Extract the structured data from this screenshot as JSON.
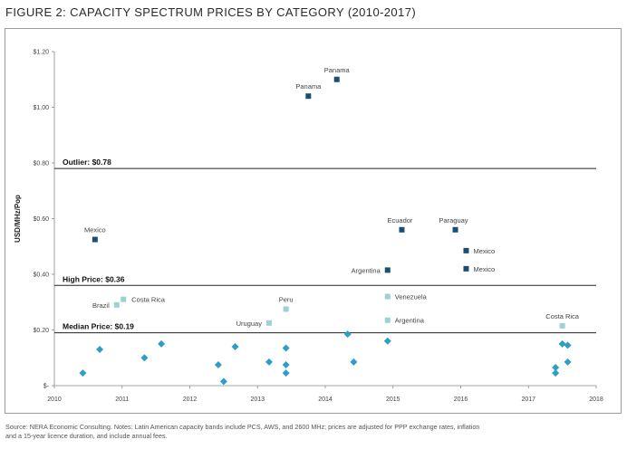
{
  "figure": {
    "title": "FIGURE 2: CAPACITY SPECTRUM PRICES BY CATEGORY (2010-2017)",
    "source_note_line1": "Source: NERA Economic Consulting. Notes: Latin American capacity bands include PCS, AWS, and 2600 MHz; prices are adjusted for PPP exchange rates, inflation",
    "source_note_line2": "and a 15-year licence duration, and include annual fees."
  },
  "chart_data": {
    "type": "scatter",
    "title": "FIGURE 2: CAPACITY SPECTRUM PRICES BY CATEGORY (2010-2017)",
    "xlabel": "",
    "ylabel": "USD/MHz/Pop",
    "xlim": [
      2010,
      2018
    ],
    "ylim": [
      0,
      1.2
    ],
    "x_ticks": [
      2010,
      2011,
      2012,
      2013,
      2014,
      2015,
      2016,
      2017,
      2018
    ],
    "x_tick_labels": [
      "2010",
      "2011",
      "2012",
      "2013",
      "2014",
      "2015",
      "2016",
      "2017",
      "2018"
    ],
    "y_ticks": [
      0,
      0.2,
      0.4,
      0.6,
      0.8,
      1.0,
      1.2
    ],
    "y_tick_labels": [
      "$-",
      "$0.20",
      "$0.40",
      "$0.60",
      "$0.80",
      "$1.00",
      "$1.20"
    ],
    "grid": false,
    "thresholds": [
      {
        "label": "Outlier: $0.78",
        "value": 0.78
      },
      {
        "label": "High Price: $0.36",
        "value": 0.36
      },
      {
        "label": "Median Price: $0.19",
        "value": 0.19
      }
    ],
    "colors": {
      "high": "#1b4f72",
      "median": "#9dd2d4",
      "low": "#2e9ec9",
      "threshold": "#222222"
    },
    "series": [
      {
        "category": "high",
        "marker": "square",
        "points": [
          {
            "x": 2013.75,
            "y": 1.04,
            "label": "Panama"
          },
          {
            "x": 2014.17,
            "y": 1.1,
            "label": "Panama"
          },
          {
            "x": 2010.6,
            "y": 0.525,
            "label": "Mexico"
          },
          {
            "x": 2015.13,
            "y": 0.56,
            "label": "Ecuador"
          },
          {
            "x": 2015.92,
            "y": 0.56,
            "label": "Paraguay"
          },
          {
            "x": 2016.08,
            "y": 0.485,
            "label": "Mexico"
          },
          {
            "x": 2016.08,
            "y": 0.42,
            "label": "Mexico"
          },
          {
            "x": 2014.92,
            "y": 0.415,
            "label": "Argentina"
          }
        ]
      },
      {
        "category": "median",
        "marker": "square",
        "points": [
          {
            "x": 2011.02,
            "y": 0.31,
            "label": "Costa Rica"
          },
          {
            "x": 2010.92,
            "y": 0.29,
            "label": "Brazil"
          },
          {
            "x": 2013.42,
            "y": 0.275,
            "label": "Peru"
          },
          {
            "x": 2013.17,
            "y": 0.225,
            "label": "Uruguay"
          },
          {
            "x": 2014.92,
            "y": 0.32,
            "label": "Venezuela"
          },
          {
            "x": 2014.92,
            "y": 0.235,
            "label": "Argentina"
          },
          {
            "x": 2017.5,
            "y": 0.215,
            "label": "Costa Rica"
          }
        ]
      },
      {
        "category": "low",
        "marker": "diamond",
        "points": [
          {
            "x": 2010.42,
            "y": 0.045
          },
          {
            "x": 2010.67,
            "y": 0.13
          },
          {
            "x": 2011.33,
            "y": 0.1
          },
          {
            "x": 2011.58,
            "y": 0.15
          },
          {
            "x": 2012.42,
            "y": 0.075
          },
          {
            "x": 2012.5,
            "y": 0.015
          },
          {
            "x": 2012.67,
            "y": 0.14
          },
          {
            "x": 2013.17,
            "y": 0.085
          },
          {
            "x": 2013.42,
            "y": 0.135
          },
          {
            "x": 2013.42,
            "y": 0.075
          },
          {
            "x": 2013.42,
            "y": 0.045
          },
          {
            "x": 2014.33,
            "y": 0.185
          },
          {
            "x": 2014.42,
            "y": 0.085
          },
          {
            "x": 2014.92,
            "y": 0.16
          },
          {
            "x": 2017.4,
            "y": 0.065
          },
          {
            "x": 2017.4,
            "y": 0.045
          },
          {
            "x": 2017.5,
            "y": 0.15
          },
          {
            "x": 2017.58,
            "y": 0.145
          },
          {
            "x": 2017.58,
            "y": 0.085
          }
        ]
      }
    ]
  }
}
